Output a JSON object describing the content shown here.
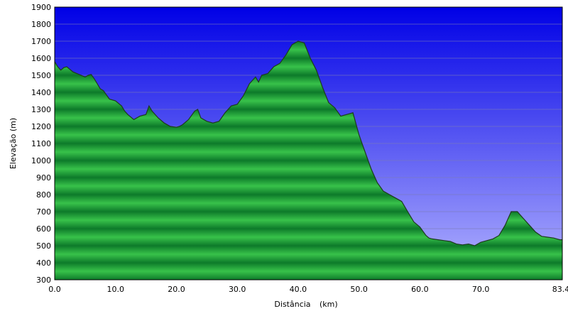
{
  "chart_data": {
    "type": "area",
    "xlabel": "Distância",
    "xunit": "(km)",
    "ylabel": "Elevação (m)",
    "xlim": [
      0,
      83.4
    ],
    "ylim": [
      300,
      1900
    ],
    "x_ticks": [
      "0.0",
      "10.0",
      "20.0",
      "30.0",
      "40.0",
      "50.0",
      "60.0",
      "70.0",
      "83.4"
    ],
    "x_tick_values": [
      0,
      10,
      20,
      30,
      40,
      50,
      60,
      70,
      83.4
    ],
    "y_ticks": [
      "300",
      "400",
      "500",
      "600",
      "700",
      "800",
      "900",
      "1000",
      "1100",
      "1200",
      "1300",
      "1400",
      "1500",
      "1600",
      "1700",
      "1800",
      "1900"
    ],
    "y_tick_values": [
      300,
      400,
      500,
      600,
      700,
      800,
      900,
      1000,
      1100,
      1200,
      1300,
      1400,
      1500,
      1600,
      1700,
      1800,
      1900
    ],
    "grid": true,
    "colors": {
      "sky_top": "#0000e6",
      "sky_bottom": "#b4b4ff",
      "fill_dark": "#0d7a2a",
      "fill_light": "#38c24a",
      "outline": "#1e3a1e",
      "grid": "#7a7ab8"
    },
    "series": [
      {
        "x": [
          0,
          0.5,
          1,
          1.5,
          2,
          3,
          4,
          5,
          5.5,
          6,
          6.5,
          7,
          7.5,
          8,
          9,
          10,
          11,
          11.5,
          12,
          13,
          14,
          15,
          15.5,
          16,
          17,
          18,
          19,
          20,
          20.5,
          21,
          22,
          23,
          23.5,
          24,
          25,
          26,
          27,
          28,
          29,
          30,
          31,
          32,
          33,
          33.5,
          34,
          35,
          36,
          37,
          38,
          39,
          40,
          41,
          42,
          43,
          44,
          45,
          46,
          47,
          48,
          49,
          50,
          51,
          52,
          53,
          54,
          55,
          56,
          57,
          58,
          59,
          60,
          61,
          61.5,
          62,
          63,
          64,
          65,
          66,
          67,
          68,
          69,
          70,
          71,
          72,
          73,
          74,
          75,
          76,
          77,
          78,
          79,
          80,
          81,
          82,
          82.5,
          83,
          83.4
        ],
        "y": [
          1580,
          1550,
          1530,
          1545,
          1550,
          1520,
          1505,
          1490,
          1500,
          1505,
          1480,
          1450,
          1420,
          1410,
          1360,
          1350,
          1320,
          1290,
          1270,
          1240,
          1260,
          1270,
          1320,
          1290,
          1250,
          1220,
          1200,
          1195,
          1200,
          1210,
          1240,
          1290,
          1300,
          1250,
          1230,
          1220,
          1230,
          1280,
          1320,
          1330,
          1380,
          1450,
          1490,
          1460,
          1500,
          1510,
          1550,
          1570,
          1620,
          1680,
          1700,
          1690,
          1600,
          1530,
          1430,
          1340,
          1310,
          1260,
          1270,
          1280,
          1150,
          1050,
          950,
          870,
          820,
          800,
          780,
          760,
          700,
          640,
          610,
          560,
          545,
          540,
          535,
          530,
          525,
          510,
          505,
          510,
          500,
          520,
          530,
          540,
          560,
          620,
          700,
          700,
          660,
          620,
          580,
          555,
          550,
          545,
          540,
          535,
          535
        ]
      }
    ]
  }
}
